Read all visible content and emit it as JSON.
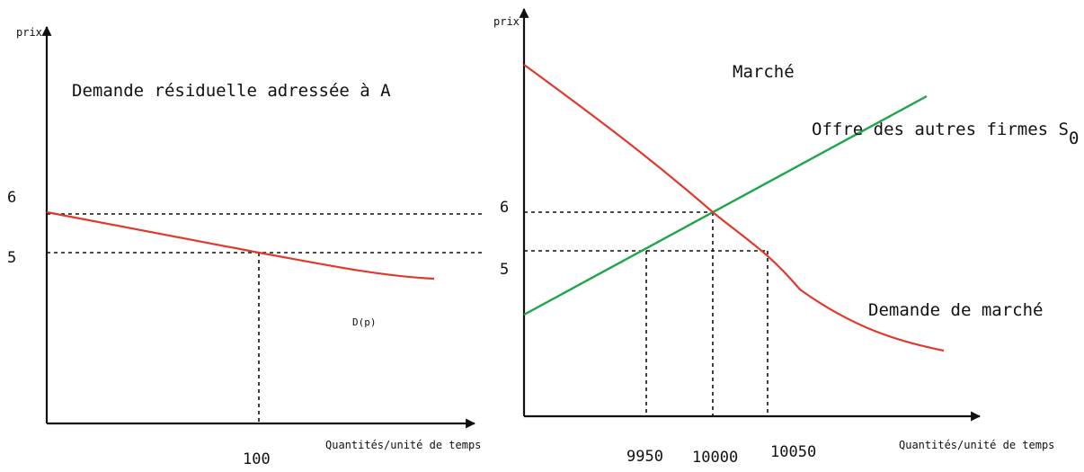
{
  "colors": {
    "demand": "#e03a2c",
    "supply": "#1fa64a",
    "axis": "#111111"
  },
  "chart_data": [
    {
      "type": "line",
      "title": "Demande résiduelle adressée à A",
      "ylabel": "prix",
      "xlabel": "Quantités/unité de temps",
      "y_ticks": [
        "6",
        "5"
      ],
      "x_ticks": [
        "100"
      ],
      "annotation": "D(p)",
      "series": [
        {
          "points": [
            [
              0,
              5.8
            ],
            [
              100,
              5
            ],
            [
              170,
              4.3
            ]
          ]
        }
      ]
    },
    {
      "type": "line",
      "title": "Marché",
      "ylabel": "prix",
      "xlabel": "Quantités/unité de temps",
      "y_ticks": [
        "6",
        "5"
      ],
      "x_ticks": [
        "9950",
        "10000",
        "10050"
      ],
      "supply_label": {
        "main": "Offre des autres firmes S",
        "sub": "0"
      },
      "demand_label": "Demande de marché",
      "series": [
        {
          "points": [
            [
              9900,
              10.5
            ],
            [
              10000,
              6
            ],
            [
              10050,
              5
            ],
            [
              10150,
              2
            ]
          ]
        },
        {
          "points": [
            [
              9900,
              2.6
            ],
            [
              9950,
              5
            ],
            [
              10000,
              6
            ],
            [
              10150,
              10
            ]
          ]
        }
      ]
    }
  ]
}
